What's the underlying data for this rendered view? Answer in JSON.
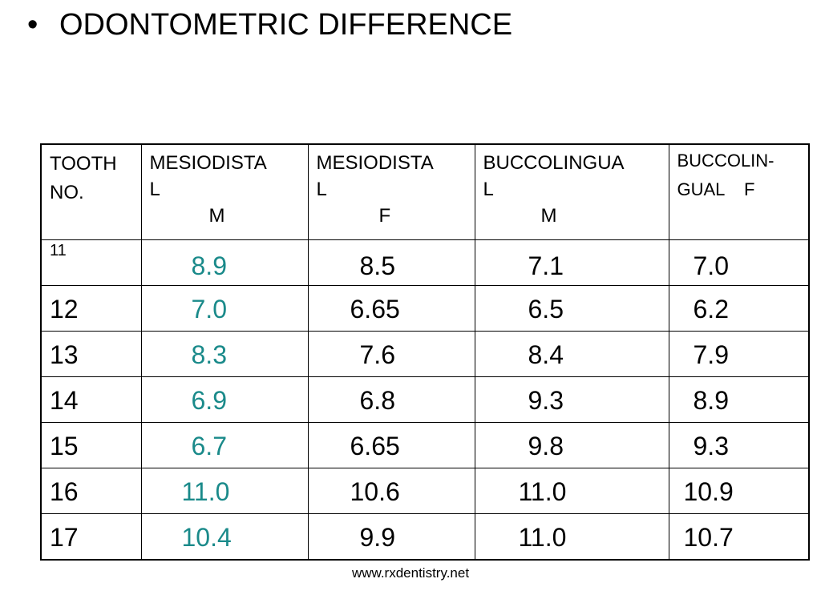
{
  "slide": {
    "bullet": "•",
    "title": "ODONTOMETRIC DIFFERENCE"
  },
  "table": {
    "headers": {
      "tooth": {
        "line1": "TOOTH",
        "line2": "NO."
      },
      "md_m": {
        "line1": "MESIODISTA",
        "line2": "L",
        "line3": "M"
      },
      "md_f": {
        "line1": "MESIODISTA",
        "line2": "L",
        "line3": "F"
      },
      "bl_m": {
        "line1": "BUCCOLINGUA",
        "line2": "L",
        "line3": "M"
      },
      "bl_f": {
        "line1": "BUCCOLIN-",
        "line2": "GUAL    F"
      }
    },
    "rows": [
      {
        "tooth": "11",
        "md_m": "8.9",
        "md_f": "8.5",
        "bl_m": "7.1",
        "bl_f": "7.0"
      },
      {
        "tooth": "12",
        "md_m": "7.0",
        "md_f": "6.65",
        "bl_m": "6.5",
        "bl_f": "6.2"
      },
      {
        "tooth": "13",
        "md_m": "8.3",
        "md_f": "7.6",
        "bl_m": "8.4",
        "bl_f": "7.9"
      },
      {
        "tooth": "14",
        "md_m": "6.9",
        "md_f": "6.8",
        "bl_m": "9.3",
        "bl_f": "8.9"
      },
      {
        "tooth": "15",
        "md_m": "6.7",
        "md_f": "6.65",
        "bl_m": "9.8",
        "bl_f": "9.3"
      },
      {
        "tooth": "16",
        "md_m": "11.0",
        "md_f": "10.6",
        "bl_m": "11.0",
        "bl_f": "10.9"
      },
      {
        "tooth": "17",
        "md_m": "10.4",
        "md_f": "9.9",
        "bl_m": "11.0",
        "bl_f": "10.7"
      }
    ]
  },
  "footer": {
    "url": "www.rxdentistry.net"
  },
  "colors": {
    "highlight": "#1a8a8a",
    "text": "#000000",
    "background": "#ffffff"
  }
}
